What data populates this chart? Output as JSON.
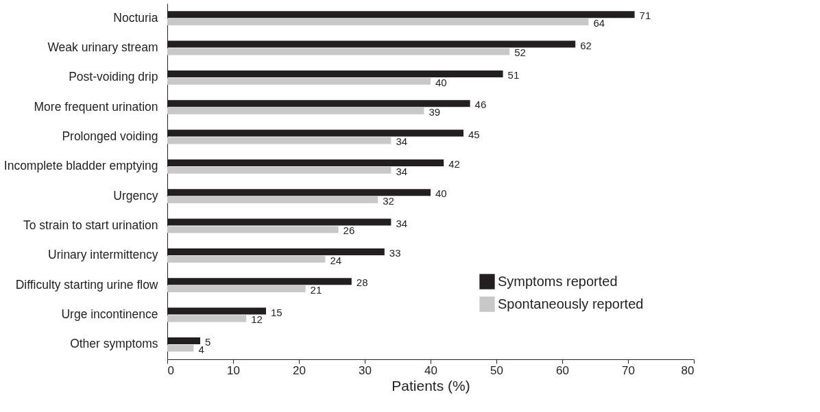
{
  "chart_data": {
    "type": "bar",
    "orientation": "horizontal",
    "xlabel": "Patients (%)",
    "categories": [
      "Nocturia",
      "Weak urinary stream",
      "Post-voiding drip",
      "More frequent urination",
      "Prolonged voiding",
      "Incomplete bladder emptying",
      "Urgency",
      "To strain to start urination",
      "Urinary intermittency",
      "Difficulty starting urine flow",
      "Urge incontinence",
      "Other symptoms"
    ],
    "series": [
      {
        "name": "Symptoms reported",
        "color": "#231f20",
        "values": [
          71,
          62,
          51,
          46,
          45,
          42,
          40,
          34,
          33,
          28,
          15,
          5
        ]
      },
      {
        "name": "Spontaneously reported",
        "color": "#c8c8c8",
        "values": [
          64,
          52,
          40,
          39,
          34,
          34,
          32,
          26,
          24,
          21,
          12,
          4
        ]
      }
    ],
    "xlim": [
      0,
      80
    ],
    "xticks": [
      0,
      10,
      20,
      30,
      40,
      50,
      60,
      70,
      80
    ],
    "data_labels": true,
    "grid": false,
    "legend": "bottom right"
  }
}
